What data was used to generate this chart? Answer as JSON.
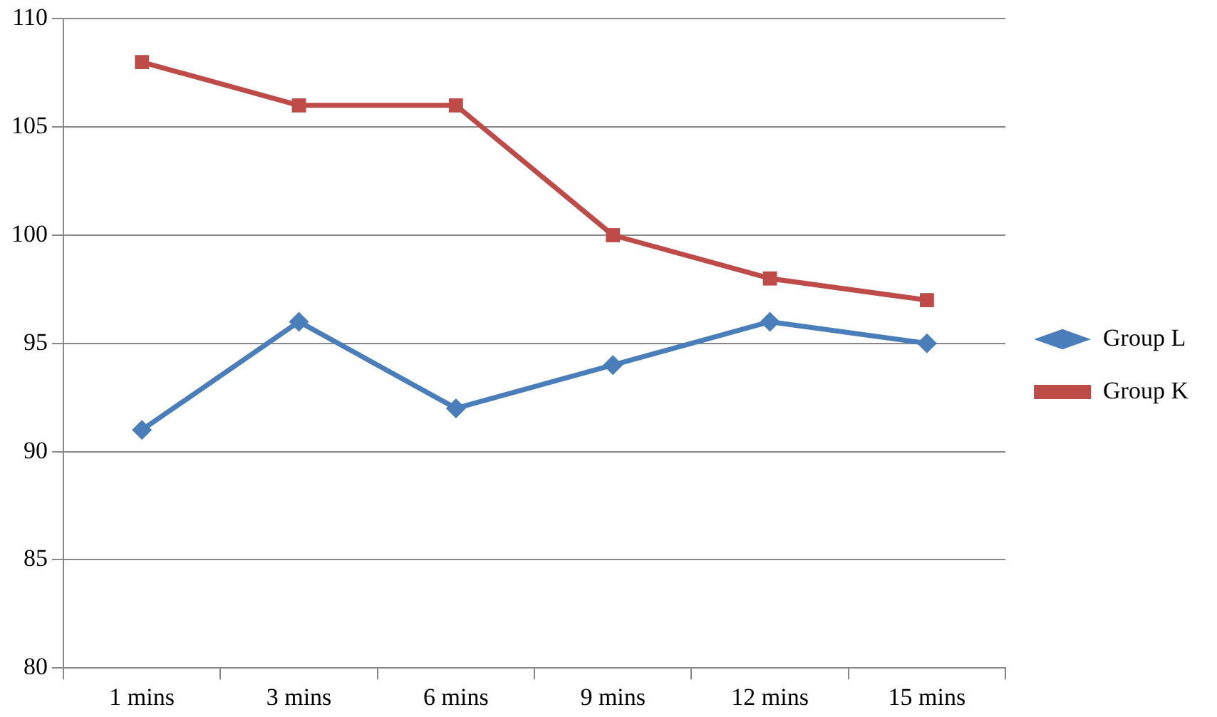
{
  "chart_data": {
    "type": "line",
    "categories": [
      "1 mins",
      "3 mins",
      "6 mins",
      "9 mins",
      "12 mins",
      "15 mins"
    ],
    "series": [
      {
        "name": "Group L",
        "color": "#4a7ebb",
        "marker": "diamond",
        "values": [
          91,
          96,
          92,
          94,
          96,
          95
        ]
      },
      {
        "name": "Group K",
        "color": "#be4b48",
        "marker": "square",
        "values": [
          108,
          106,
          106,
          100,
          98,
          97
        ]
      }
    ],
    "ylim": [
      80,
      110
    ],
    "yticks": [
      80,
      85,
      90,
      95,
      100,
      105,
      110
    ],
    "grid": "y",
    "legend": "right"
  }
}
